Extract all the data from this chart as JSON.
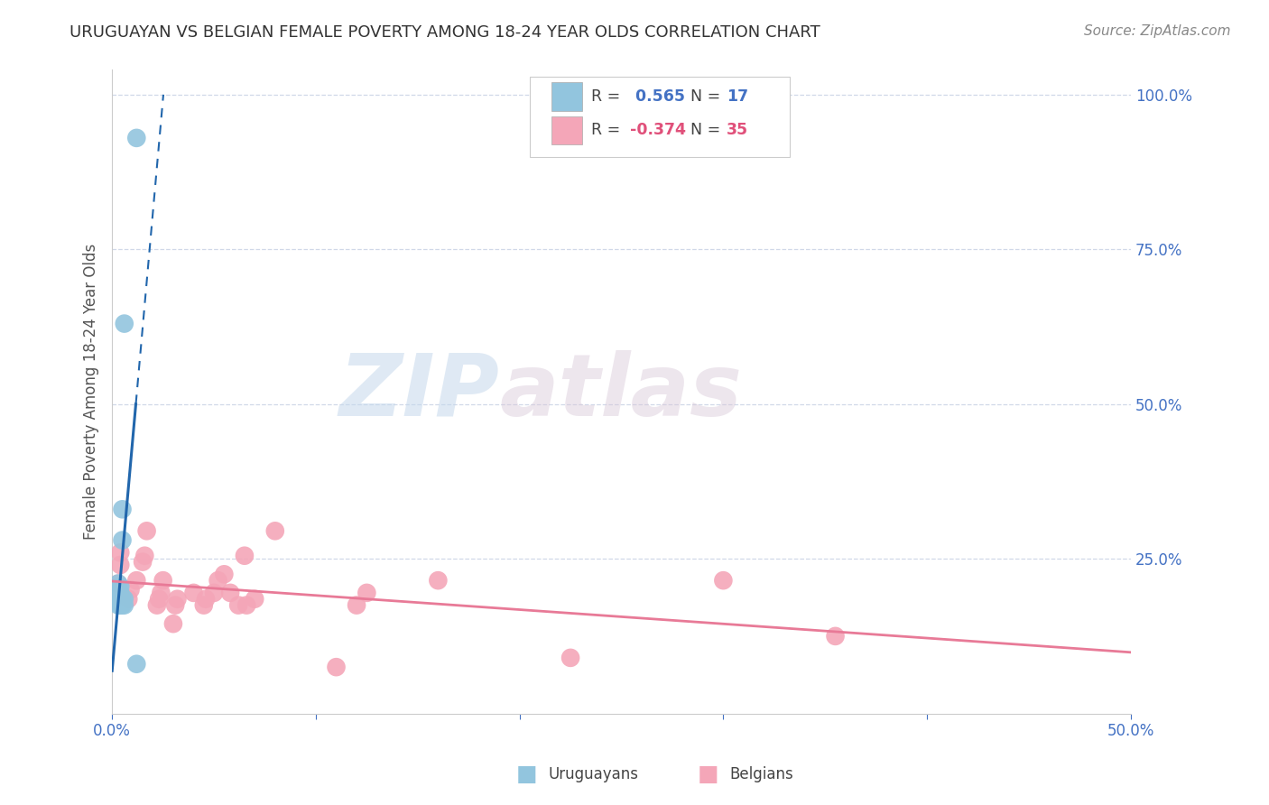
{
  "title": "URUGUAYAN VS BELGIAN FEMALE POVERTY AMONG 18-24 YEAR OLDS CORRELATION CHART",
  "source": "Source: ZipAtlas.com",
  "ylabel": "Female Poverty Among 18-24 Year Olds",
  "xlim": [
    0.0,
    0.5
  ],
  "ylim": [
    0.0,
    1.04
  ],
  "xticks": [
    0.0,
    0.1,
    0.2,
    0.3,
    0.4,
    0.5
  ],
  "yticks": [
    0.25,
    0.5,
    0.75,
    1.0
  ],
  "uruguayan_color": "#92c5de",
  "belgian_color": "#f4a6b8",
  "uruguayan_line_color": "#2166ac",
  "belgian_line_color": "#e87a97",
  "R_uruguayan": 0.565,
  "N_uruguayan": 17,
  "R_belgian": -0.374,
  "N_belgian": 35,
  "uruguayan_x": [
    0.003,
    0.003,
    0.003,
    0.003,
    0.004,
    0.004,
    0.004,
    0.004,
    0.005,
    0.005,
    0.005,
    0.005,
    0.006,
    0.006,
    0.006,
    0.012,
    0.012
  ],
  "uruguayan_y": [
    0.175,
    0.19,
    0.2,
    0.21,
    0.175,
    0.185,
    0.195,
    0.205,
    0.175,
    0.185,
    0.28,
    0.33,
    0.175,
    0.185,
    0.63,
    0.08,
    0.93
  ],
  "belgian_x": [
    0.003,
    0.004,
    0.004,
    0.008,
    0.009,
    0.012,
    0.015,
    0.016,
    0.017,
    0.022,
    0.023,
    0.024,
    0.025,
    0.03,
    0.031,
    0.032,
    0.04,
    0.045,
    0.046,
    0.05,
    0.052,
    0.055,
    0.058,
    0.062,
    0.065,
    0.066,
    0.07,
    0.08,
    0.11,
    0.12,
    0.125,
    0.16,
    0.225,
    0.3,
    0.355
  ],
  "belgian_y": [
    0.21,
    0.24,
    0.26,
    0.185,
    0.2,
    0.215,
    0.245,
    0.255,
    0.295,
    0.175,
    0.185,
    0.195,
    0.215,
    0.145,
    0.175,
    0.185,
    0.195,
    0.175,
    0.185,
    0.195,
    0.215,
    0.225,
    0.195,
    0.175,
    0.255,
    0.175,
    0.185,
    0.295,
    0.075,
    0.175,
    0.195,
    0.215,
    0.09,
    0.215,
    0.125
  ],
  "watermark_zip": "ZIP",
  "watermark_atlas": "atlas",
  "background_color": "#ffffff",
  "grid_color": "#d0d8e8"
}
